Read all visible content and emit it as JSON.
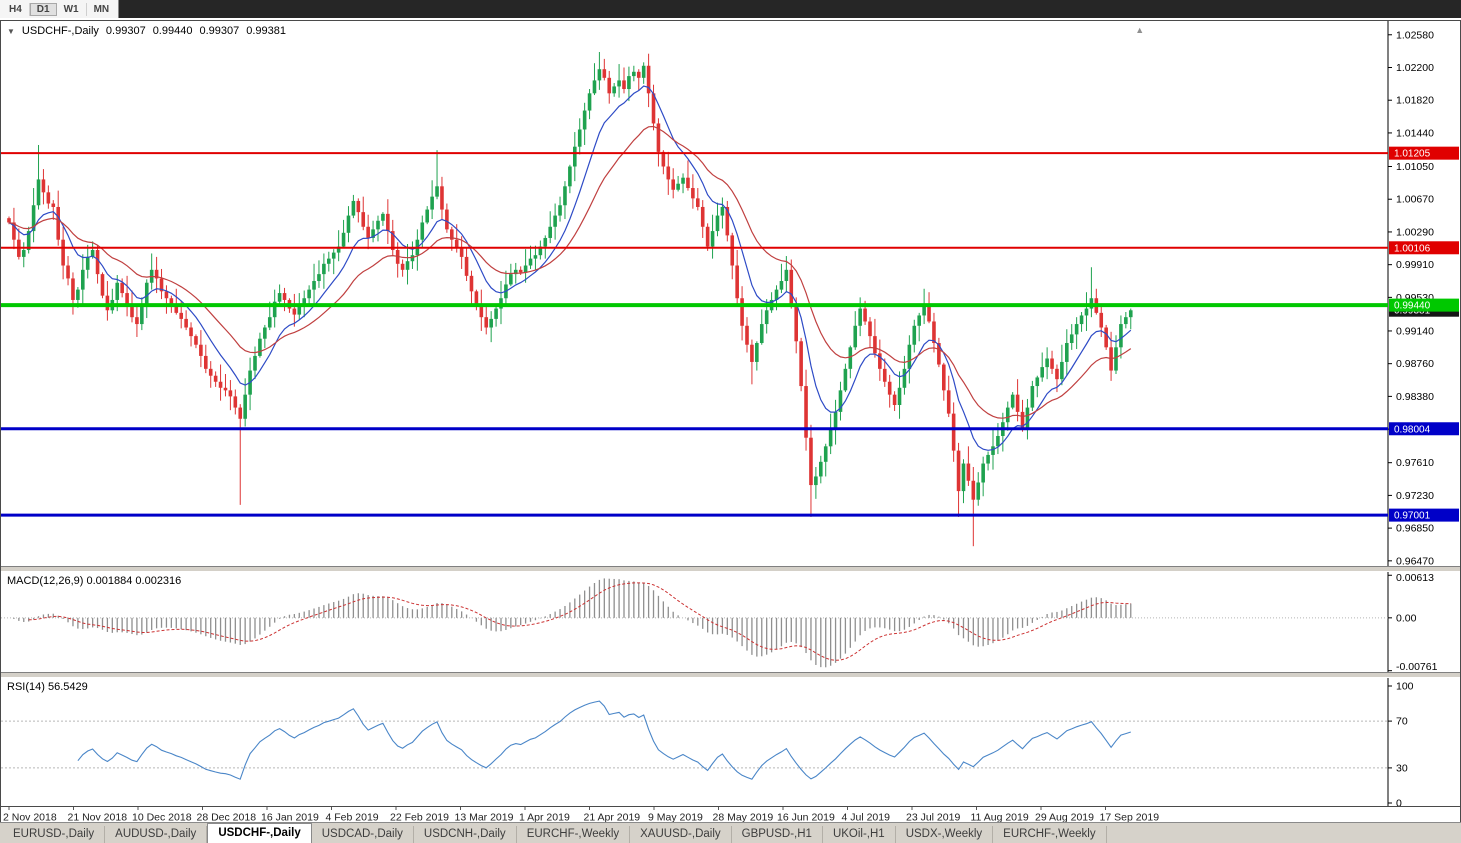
{
  "icons": {
    "dropdown": "▼",
    "shift_marker": "▲"
  },
  "toolbar": {
    "timeframes": [
      {
        "label": "H4",
        "active": false
      },
      {
        "label": "D1",
        "active": true
      },
      {
        "label": "W1",
        "active": false
      },
      {
        "label": "MN",
        "active": false
      }
    ]
  },
  "chart": {
    "symbol_title": "USDCHF-,Daily",
    "ohlc": {
      "open": "0.99307",
      "high": "0.99440",
      "low": "0.99307",
      "close": "0.99381"
    },
    "bid_label": "0.99381",
    "price_axis": [
      "1.02580",
      "1.02200",
      "1.01820",
      "1.01440",
      "1.01050",
      "1.00670",
      "1.00290",
      "0.99910",
      "0.99530",
      "0.99140",
      "0.98760",
      "0.98380",
      "0.98000",
      "0.97610",
      "0.97230",
      "0.96850",
      "0.96470"
    ],
    "hlines": [
      {
        "price": 1.01205,
        "label": "1.01205",
        "color": "#e00000",
        "width": 2
      },
      {
        "price": 1.00106,
        "label": "1.00106",
        "color": "#e00000",
        "width": 2
      },
      {
        "price": 0.9944,
        "label": "0.99440",
        "color": "#00c800",
        "width": 4
      },
      {
        "price": 0.98004,
        "label": "0.98004",
        "color": "#0000c8",
        "width": 3
      },
      {
        "price": 0.97001,
        "label": "0.97001",
        "color": "#0000c8",
        "width": 3
      }
    ],
    "date_axis": [
      "2 Nov 2018",
      "21 Nov 2018",
      "10 Dec 2018",
      "28 Dec 2018",
      "16 Jan 2019",
      "4 Feb 2019",
      "22 Feb 2019",
      "13 Mar 2019",
      "1 Apr 2019",
      "21 Apr 2019",
      "9 May 2019",
      "28 May 2019",
      "16 Jun 2019",
      "4 Jul 2019",
      "23 Jul 2019",
      "11 Aug 2019",
      "29 Aug 2019",
      "17 Sep 2019"
    ],
    "chart_data": {
      "type": "candlestick",
      "symbol": "USDCHF",
      "timeframe": "Daily",
      "price_scale": {
        "pmax": 1.0274,
        "pmin": 0.9641
      },
      "ma_periods": {
        "fast": 10,
        "slow": 24
      },
      "macd_params": [
        12,
        26,
        9
      ],
      "rsi_period": 14,
      "first_open_e4": 10045,
      "closes_e4": [
        10040,
        10020,
        10000,
        10008,
        10030,
        10060,
        10090,
        10075,
        10062,
        10058,
        10020,
        9990,
        9975,
        9950,
        9962,
        9985,
        10000,
        10008,
        9980,
        9955,
        9938,
        9950,
        9970,
        9958,
        9945,
        9930,
        9922,
        9945,
        9970,
        9985,
        9975,
        9960,
        9952,
        9945,
        9935,
        9928,
        9918,
        9908,
        9898,
        9885,
        9870,
        9862,
        9855,
        9848,
        9845,
        9838,
        9825,
        9812,
        9840,
        9868,
        9885,
        9905,
        9918,
        9930,
        9948,
        9958,
        9950,
        9940,
        9933,
        9945,
        9952,
        9962,
        9972,
        9980,
        9992,
        9998,
        10005,
        10012,
        10028,
        10048,
        10065,
        10052,
        10035,
        10022,
        10032,
        10042,
        10050,
        10030,
        10008,
        9992,
        9985,
        9995,
        10002,
        10020,
        10040,
        10055,
        10070,
        10082,
        10055,
        10032,
        10020,
        10010,
        10000,
        9978,
        9960,
        9945,
        9930,
        9918,
        9928,
        9940,
        9952,
        9968,
        9980,
        9985,
        9982,
        9990,
        9998,
        10002,
        10012,
        10022,
        10035,
        10048,
        10060,
        10082,
        10105,
        10128,
        10148,
        10170,
        10190,
        10205,
        10218,
        10208,
        10190,
        10198,
        10205,
        10195,
        10210,
        10215,
        10208,
        10222,
        10190,
        10155,
        10122,
        10105,
        10090,
        10078,
        10085,
        10092,
        10080,
        10068,
        10058,
        10035,
        10012,
        10030,
        10048,
        10058,
        10025,
        9990,
        9952,
        9920,
        9898,
        9878,
        9900,
        9922,
        9938,
        9950,
        9962,
        9972,
        9985,
        9945,
        9902,
        9850,
        9790,
        9735,
        9745,
        9762,
        9780,
        9800,
        9820,
        9845,
        9870,
        9895,
        9920,
        9940,
        9925,
        9908,
        9888,
        9870,
        9855,
        9840,
        9828,
        9848,
        9870,
        9898,
        9920,
        9932,
        9945,
        9925,
        9900,
        9875,
        9845,
        9818,
        9775,
        9728,
        9760,
        9740,
        9718,
        9738,
        9760,
        9770,
        9780,
        9792,
        9808,
        9825,
        9840,
        9820,
        9800,
        9825,
        9850,
        9860,
        9872,
        9882,
        9870,
        9858,
        9878,
        9900,
        9910,
        9922,
        9932,
        9940,
        9952,
        9935,
        9918,
        9895,
        9868,
        9895,
        9922,
        9930,
        9938
      ],
      "wick_overrides": [
        [
          6,
          10130,
          null
        ],
        [
          47,
          null,
          9712
        ],
        [
          87,
          10124,
          null
        ],
        [
          120,
          10238,
          null
        ],
        [
          129,
          10226,
          null
        ],
        [
          151,
          null,
          9852
        ],
        [
          163,
          null,
          9698
        ],
        [
          193,
          null,
          9698
        ],
        [
          196,
          null,
          9664
        ],
        [
          220,
          9988,
          null
        ]
      ]
    }
  },
  "macd": {
    "title": "MACD(12,26,9) 0.001884 0.002316",
    "axis": [
      "0.00613",
      "0.00",
      "-0.00761"
    ],
    "scale": {
      "vmax": 0.0066,
      "vmin": -0.0078
    }
  },
  "rsi": {
    "title": "RSI(14) 56.5429",
    "axis": [
      "100",
      "70",
      "30",
      "0"
    ],
    "levels": [
      70,
      30
    ]
  },
  "tabs": [
    {
      "label": "EURUSD-,Daily",
      "active": false
    },
    {
      "label": "AUDUSD-,Daily",
      "active": false
    },
    {
      "label": "USDCHF-,Daily",
      "active": true
    },
    {
      "label": "USDCAD-,Daily",
      "active": false
    },
    {
      "label": "USDCNH-,Daily",
      "active": false
    },
    {
      "label": "EURCHF-,Weekly",
      "active": false
    },
    {
      "label": "XAUUSD-,Daily",
      "active": false
    },
    {
      "label": "GBPUSD-,H1",
      "active": false
    },
    {
      "label": "UKOil-,H1",
      "active": false
    },
    {
      "label": "USDX-,Weekly",
      "active": false
    },
    {
      "label": "EURCHF-,Weekly",
      "active": false
    }
  ],
  "colors": {
    "bull": "#1fa24f",
    "bear": "#de3434",
    "ma_fast": "#2e4bc6",
    "ma_slow": "#c04040",
    "rsi_line": "#4a86c8",
    "macd_hist": "#8f8f8f",
    "macd_signal": "#cc3333",
    "axis_text": "#000000",
    "date_text": "#222222",
    "bid_box": "#161616"
  }
}
